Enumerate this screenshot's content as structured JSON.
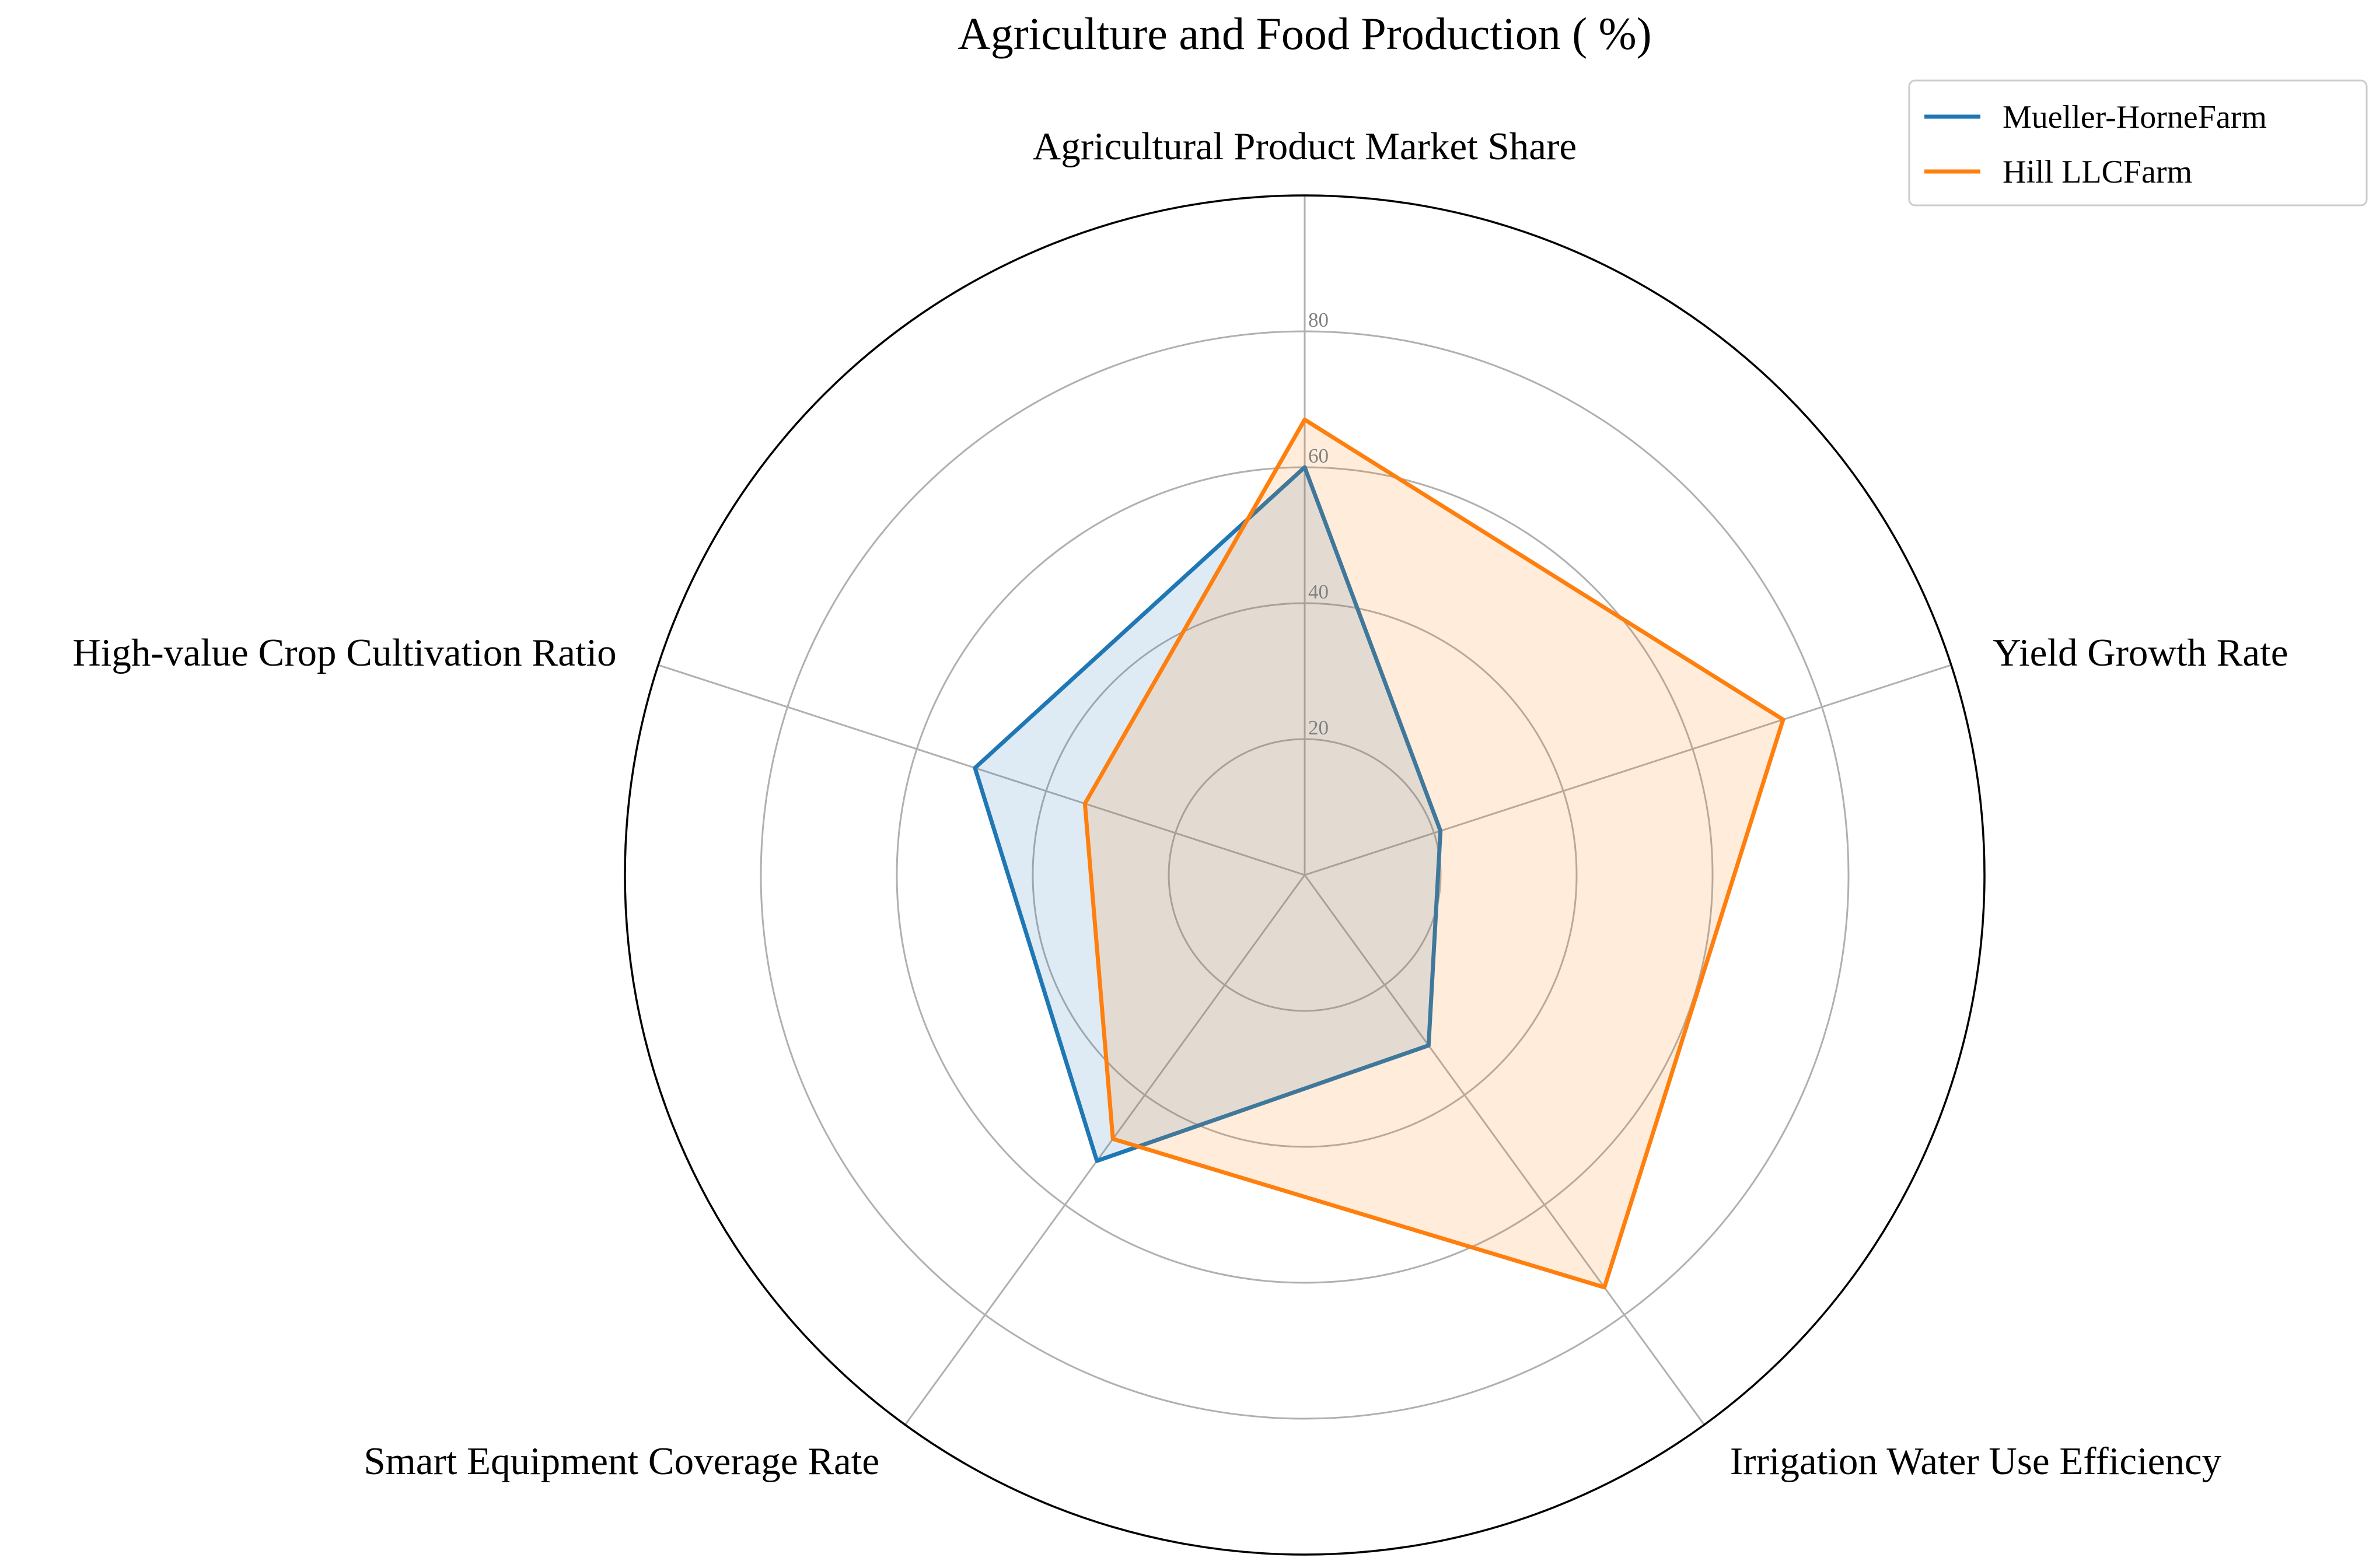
{
  "chart_data": {
    "type": "radar",
    "title": "Agriculture and Food Production ( %)",
    "categories": [
      "Agricultural Product Market Share",
      "Yield Growth Rate",
      "Irrigation Water Use Efficiency",
      "Smart Equipment Coverage Rate",
      "High-value Crop Cultivation Ratio"
    ],
    "rlim": [
      0,
      100
    ],
    "rticks": [
      20,
      40,
      60,
      80
    ],
    "grid": true,
    "legend_position": "top-right",
    "series": [
      {
        "name": "Mueller-HorneFarm",
        "values": [
          60,
          21,
          31,
          52,
          51
        ],
        "color": "#1f77b4"
      },
      {
        "name": "Hill LLCFarm",
        "values": [
          67,
          74,
          75,
          48,
          34
        ],
        "color": "#ff7f0e"
      }
    ]
  }
}
